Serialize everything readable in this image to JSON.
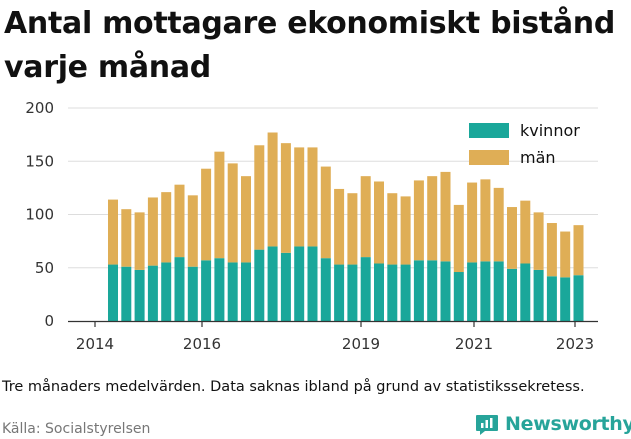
{
  "title": "Antal mottagare ekonomiskt bistånd varje månad",
  "footnote": "Tre månaders medelvärden. Data saknas ibland på grund av statistikssekretess.",
  "source": "Källa: Socialstyrelsen",
  "brand": "Newsworthy",
  "colors": {
    "kvinnor": "#1aa79a",
    "man": "#dfae56",
    "axis": "#333333",
    "grid": "#dddddd"
  },
  "chart_data": {
    "type": "bar",
    "stacked": true,
    "ylim": [
      0,
      200
    ],
    "yticks": [
      0,
      50,
      100,
      150,
      200
    ],
    "xticks": [
      "2014",
      "2016",
      "2019",
      "2021",
      "2023"
    ],
    "legend_position": "top-right",
    "grid": true,
    "series": [
      {
        "name": "kvinnor",
        "values": [
          53,
          51,
          48,
          52,
          55,
          60,
          51,
          57,
          59,
          55,
          55,
          67,
          70,
          64,
          70,
          70,
          59,
          53,
          53,
          60,
          54,
          53,
          53,
          57,
          57,
          56,
          46,
          55,
          56,
          56,
          49,
          54,
          48,
          42,
          41,
          43
        ]
      },
      {
        "name": "män",
        "values": [
          61,
          54,
          54,
          64,
          66,
          68,
          67,
          86,
          100,
          93,
          81,
          98,
          107,
          103,
          93,
          93,
          86,
          71,
          67,
          76,
          77,
          67,
          64,
          75,
          79,
          84,
          63,
          75,
          77,
          69,
          58,
          59,
          54,
          50,
          43,
          47
        ]
      }
    ]
  }
}
